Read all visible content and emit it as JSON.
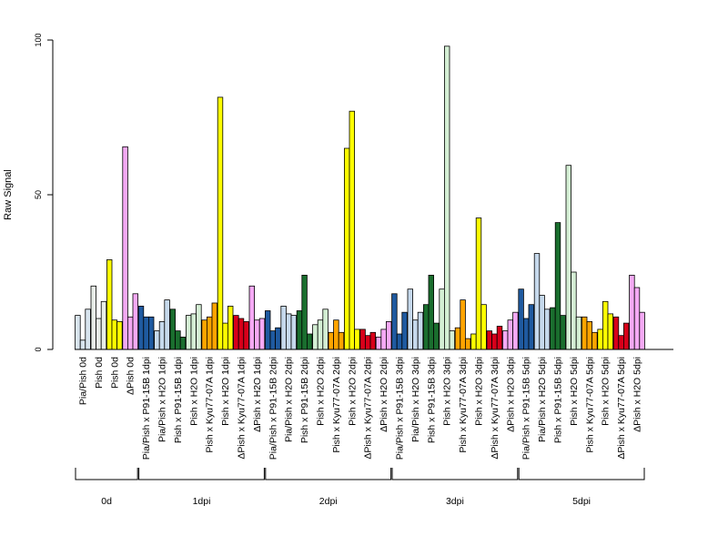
{
  "chart_data": {
    "type": "bar",
    "title": "",
    "ylabel": "Raw Signal",
    "xlabel": "",
    "ylim": [
      0,
      100
    ],
    "yticks": [
      0,
      50,
      100
    ],
    "grid": false,
    "colors": {
      "gray_blue": "#D8E4EE",
      "white_gray": "#E8EEE8",
      "yellow": "#FFFF00",
      "pink": "#F5A9F5",
      "dark_blue": "#1F5AA0",
      "light_blue": "#C6D9EC",
      "dark_green": "#1A6E2E",
      "light_green": "#D4EFD4",
      "orange": "#FFA500",
      "red": "#D8001A"
    },
    "categories": [
      "Pia/Pish 0d",
      "Pish 0d",
      "Pish 0d",
      "ΔPish 0d",
      "Pia/Pish x P91-15B 1dpi",
      "Pia/Pish x H2O 1dpi",
      "Pish x P91-15B 1dpi",
      "Pish x H2O 1dpi",
      "Pish x Kyu77-07A 1dpi",
      "Pish x H2O 1dpi",
      "ΔPish x Kyu77-07A 1dpi",
      "ΔPish x H2O 1dpi",
      "Pia/Pish x P91-15B 2dpi",
      "Pia/Pish x H2O 2dpi",
      "Pish x P91-15B 2dpi",
      "Pish x H2O 2dpi",
      "Pish x Kyu77-07A 2dpi",
      "Pish x H2O 2dpi",
      "ΔPish x Kyu77-07A 2dpi",
      "ΔPish x H2O 2dpi",
      "Pia/Pish x P91-15B 3dpi",
      "Pia/Pish x H2O 3dpi",
      "Pish x P91-15B 3dpi",
      "Pish x H2O 3dpi",
      "Pish x Kyu77-07A 3dpi",
      "Pish x H2O 3dpi",
      "ΔPish x Kyu77-07A 3dpi",
      "ΔPish x H2O 3dpi",
      "Pia/Pish x P91-15B 5dpi",
      "Pia/Pish x H2O 5dpi",
      "Pish x P91-15B 5dpi",
      "Pish x H2O 5dpi",
      "Pish x Kyu77-07A 5dpi",
      "Pish x H2O 5dpi",
      "ΔPish x Kyu77-07A 5dpi",
      "ΔPish x H2O 5dpi"
    ],
    "series": [
      {
        "bar_colors": [
          "gray_blue",
          "white_gray",
          "yellow",
          "pink",
          "dark_blue",
          "light_blue",
          "dark_green",
          "light_green",
          "orange",
          "yellow",
          "red",
          "pink",
          "dark_blue",
          "light_blue",
          "dark_green",
          "light_green",
          "orange",
          "yellow",
          "red",
          "pink",
          "dark_blue",
          "light_blue",
          "dark_green",
          "light_green",
          "orange",
          "yellow",
          "red",
          "pink",
          "dark_blue",
          "light_blue",
          "dark_green",
          "light_green",
          "orange",
          "yellow",
          "red",
          "pink"
        ],
        "values": [
          [
            11,
            3,
            13
          ],
          [
            20.5,
            10,
            15.5
          ],
          [
            29,
            9.5,
            9
          ],
          [
            65.5,
            10.5,
            18
          ],
          [
            14,
            10.5,
            10.5
          ],
          [
            6,
            9,
            16
          ],
          [
            13,
            6,
            4
          ],
          [
            11,
            11.5,
            14.5
          ],
          [
            9.5,
            10.5,
            15
          ],
          [
            81.5,
            8.5,
            14
          ],
          [
            11,
            10,
            9
          ],
          [
            20.5,
            9.5,
            10
          ],
          [
            12.5,
            6,
            7
          ],
          [
            14,
            11.5,
            11
          ],
          [
            12.5,
            24,
            5
          ],
          [
            8,
            9.5,
            13
          ],
          [
            5.5,
            9.5,
            5.5
          ],
          [
            65,
            77,
            6.5
          ],
          [
            6.5,
            4.5,
            5.5
          ],
          [
            4,
            6.5,
            9
          ],
          [
            18,
            5,
            12
          ],
          [
            19.5,
            9.5,
            12
          ],
          [
            14.5,
            24,
            8.5
          ],
          [
            19.5,
            98,
            6
          ],
          [
            7,
            16,
            3.5
          ],
          [
            5,
            42.5,
            14.5
          ],
          [
            6,
            5,
            7.5
          ],
          [
            6,
            9.5,
            12
          ],
          [
            19.5,
            10,
            14.5
          ],
          [
            31,
            17.5,
            13
          ],
          [
            13.5,
            41,
            11
          ],
          [
            59.5,
            25,
            10.5
          ],
          [
            10.5,
            9,
            5.5
          ],
          [
            6.5,
            15.5,
            11.5
          ],
          [
            10.5,
            4.5,
            8.5
          ],
          [
            24,
            20,
            12
          ]
        ]
      }
    ],
    "groups": [
      {
        "label": "0d",
        "start": 0,
        "end": 3
      },
      {
        "label": "1dpi",
        "start": 4,
        "end": 11
      },
      {
        "label": "2dpi",
        "start": 12,
        "end": 19
      },
      {
        "label": "3dpi",
        "start": 20,
        "end": 27
      },
      {
        "label": "5dpi",
        "start": 28,
        "end": 35
      }
    ]
  }
}
